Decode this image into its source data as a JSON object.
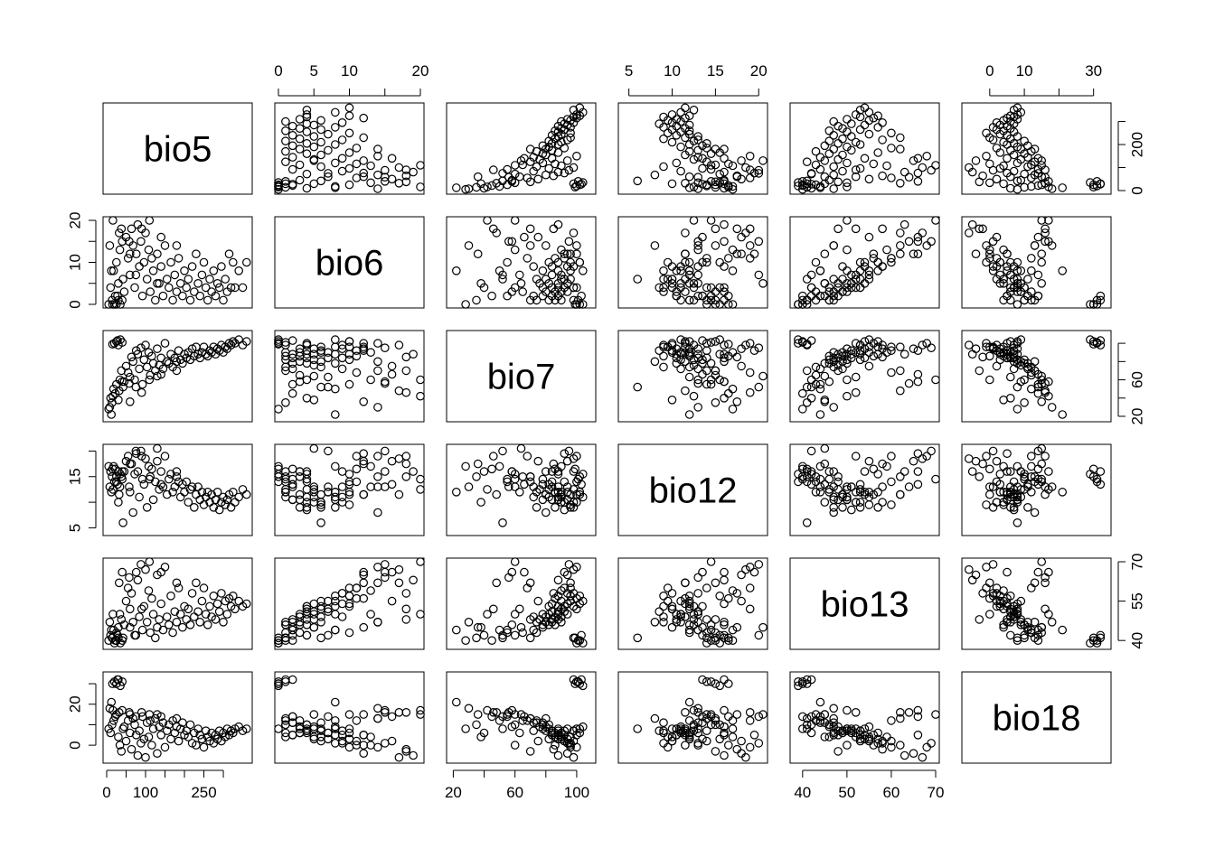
{
  "chart_data": {
    "type": "scatter",
    "subtype": "scatterplot-matrix",
    "variables": [
      "bio5",
      "bio6",
      "bio7",
      "bio12",
      "bio13",
      "bio18"
    ],
    "ranges": {
      "bio5": [
        0,
        365
      ],
      "bio6": [
        0,
        20
      ],
      "bio7": [
        18,
        110
      ],
      "bio12": [
        4.2,
        20.6
      ],
      "bio13": [
        38,
        70
      ],
      "bio18": [
        -7,
        34
      ]
    },
    "axes": {
      "bio5": {
        "ticks": [
          0,
          100,
          250
        ],
        "minor_ticks": [
          50,
          150,
          200,
          300
        ],
        "label_side": "bottom"
      },
      "bio6": {
        "ticks": [
          0,
          5,
          10,
          20
        ],
        "minor_ticks": [
          15
        ],
        "label_side": "top"
      },
      "bio7": {
        "ticks": [
          20,
          60,
          100
        ],
        "minor_ticks": [
          40,
          80
        ],
        "label_side": "bottom"
      },
      "bio12": {
        "ticks": [
          5,
          10,
          15,
          20
        ],
        "label_side": "top"
      },
      "bio13": {
        "ticks": [
          40,
          50,
          60,
          70
        ],
        "label_side": "bottom"
      },
      "bio18": {
        "ticks": [
          0,
          10,
          30
        ],
        "minor_ticks": [
          20
        ],
        "label_side": "top"
      }
    },
    "y_axes": {
      "bio5": {
        "ticks": [
          0,
          200
        ],
        "minor_ticks": [
          100,
          300
        ],
        "label_side": "right"
      },
      "bio6": {
        "ticks": [
          0,
          10,
          20
        ],
        "minor_ticks": [
          5,
          15
        ],
        "label_side": "left"
      },
      "bio7": {
        "ticks": [
          20,
          60
        ],
        "minor_ticks": [
          40,
          80,
          100
        ],
        "label_side": "right"
      },
      "bio12": {
        "ticks": [
          5,
          15
        ],
        "minor_ticks": [
          10,
          20
        ],
        "label_side": "left"
      },
      "bio13": {
        "ticks": [
          40,
          55,
          70
        ],
        "label_side": "right"
      },
      "bio18": {
        "ticks": [
          0,
          20
        ],
        "minor_ticks": [
          10,
          30
        ],
        "label_side": "left"
      }
    },
    "series": [
      {
        "values": [
          {
            "bio5": 5,
            "bio6": 0,
            "bio7": 28,
            "bio12": 17,
            "bio13": 40,
            "bio18": 8
          },
          {
            "bio5": 10,
            "bio6": 4,
            "bio7": 40,
            "bio12": 16,
            "bio13": 42,
            "bio18": 6
          },
          {
            "bio5": 14,
            "bio6": 1,
            "bio7": 35,
            "bio12": 15,
            "bio13": 41,
            "bio18": 10
          },
          {
            "bio5": 18,
            "bio6": 8,
            "bio7": 50,
            "bio12": 17,
            "bio13": 44,
            "bio18": 12
          },
          {
            "bio5": 22,
            "bio6": 2,
            "bio7": 45,
            "bio12": 16.5,
            "bio13": 40,
            "bio18": 14
          },
          {
            "bio5": 25,
            "bio6": 10,
            "bio7": 55,
            "bio12": 14,
            "bio13": 43,
            "bio18": 15
          },
          {
            "bio5": 30,
            "bio6": 5,
            "bio7": 38,
            "bio12": 10,
            "bio13": 45,
            "bio18": 4
          },
          {
            "bio5": 34,
            "bio6": 13,
            "bio7": 60,
            "bio12": 13,
            "bio13": 50,
            "bio18": 0
          },
          {
            "bio5": 38,
            "bio6": 18,
            "bio7": 70,
            "bio12": 15,
            "bio13": 48,
            "bio18": -3
          },
          {
            "bio5": 42,
            "bio6": 6,
            "bio7": 52,
            "bio12": 6,
            "bio13": 41,
            "bio18": 8
          },
          {
            "bio5": 45,
            "bio6": 3,
            "bio7": 58,
            "bio12": 16,
            "bio13": 46,
            "bio18": 9
          },
          {
            "bio5": 50,
            "bio6": 16,
            "bio7": 75,
            "bio12": 18,
            "bio13": 55,
            "bio18": 2
          },
          {
            "bio5": 55,
            "bio6": 11,
            "bio7": 68,
            "bio12": 19,
            "bio13": 60,
            "bio18": 12
          },
          {
            "bio5": 60,
            "bio6": 7,
            "bio7": 63,
            "bio12": 12,
            "bio13": 52,
            "bio18": 6
          },
          {
            "bio5": 64,
            "bio6": 18,
            "bio7": 85,
            "bio12": 17.5,
            "bio13": 58,
            "bio18": -2
          },
          {
            "bio5": 68,
            "bio6": 14,
            "bio7": 80,
            "bio12": 8,
            "bio13": 47,
            "bio18": 13
          },
          {
            "bio5": 72,
            "bio6": 4,
            "bio7": 60,
            "bio12": 15.5,
            "bio13": 42,
            "bio18": 10
          },
          {
            "bio5": 76,
            "bio6": 12,
            "bio7": 92,
            "bio12": 19.5,
            "bio13": 66,
            "bio18": 5
          },
          {
            "bio5": 80,
            "bio6": 19,
            "bio7": 88,
            "bio12": 16,
            "bio13": 63,
            "bio18": -5
          },
          {
            "bio5": 84,
            "bio6": 9,
            "bio7": 72,
            "bio12": 11,
            "bio13": 49,
            "bio18": 7
          },
          {
            "bio5": 88,
            "bio6": 15,
            "bio7": 95,
            "bio12": 20,
            "bio13": 69,
            "bio18": 1
          },
          {
            "bio5": 92,
            "bio6": 2,
            "bio7": 55,
            "bio12": 14.5,
            "bio13": 44,
            "bio18": 14
          },
          {
            "bio5": 96,
            "bio6": 10,
            "bio7": 82,
            "bio12": 13.5,
            "bio13": 53,
            "bio18": 3
          },
          {
            "bio5": 100,
            "bio6": 17,
            "bio7": 98,
            "bio12": 18.5,
            "bio13": 67,
            "bio18": -6
          },
          {
            "bio5": 104,
            "bio6": 6,
            "bio7": 74,
            "bio12": 9,
            "bio13": 47,
            "bio18": 11
          },
          {
            "bio5": 108,
            "bio6": 13,
            "bio7": 90,
            "bio12": 17,
            "bio13": 59,
            "bio18": 4
          },
          {
            "bio5": 112,
            "bio6": 3,
            "bio7": 65,
            "bio12": 15,
            "bio13": 43,
            "bio18": 12
          },
          {
            "bio5": 116,
            "bio6": 11,
            "bio7": 86,
            "bio12": 16.5,
            "bio13": 56,
            "bio18": 0
          },
          {
            "bio5": 120,
            "bio6": 8,
            "bio7": 78,
            "bio12": 10.5,
            "bio13": 50,
            "bio18": 8
          },
          {
            "bio5": 125,
            "bio6": 1,
            "bio7": 70,
            "bio12": 14,
            "bio13": 41,
            "bio18": 13
          },
          {
            "bio5": 130,
            "bio6": 12,
            "bio7": 94,
            "bio12": 18,
            "bio13": 65,
            "bio18": -4
          },
          {
            "bio5": 135,
            "bio6": 5,
            "bio7": 76,
            "bio12": 12.5,
            "bio13": 48,
            "bio18": 9
          },
          {
            "bio5": 140,
            "bio6": 9,
            "bio7": 84,
            "bio12": 16,
            "bio13": 54,
            "bio18": 5
          },
          {
            "bio5": 145,
            "bio6": 2,
            "bio7": 72,
            "bio12": 13,
            "bio13": 44,
            "bio18": 11
          },
          {
            "bio5": 150,
            "bio6": 14,
            "bio7": 100,
            "bio12": 19,
            "bio13": 68,
            "bio18": -1
          },
          {
            "bio5": 155,
            "bio6": 6,
            "bio7": 80,
            "bio12": 11.5,
            "bio13": 49,
            "bio18": 7
          },
          {
            "bio5": 160,
            "bio6": 4,
            "bio7": 78,
            "bio12": 14.5,
            "bio13": 46,
            "bio18": 10
          },
          {
            "bio5": 165,
            "bio6": 10,
            "bio7": 88,
            "bio12": 15.5,
            "bio13": 57,
            "bio18": 3
          },
          {
            "bio5": 170,
            "bio6": 1,
            "bio7": 74,
            "bio12": 12,
            "bio13": 43,
            "bio18": 12
          },
          {
            "bio5": 175,
            "bio6": 7,
            "bio7": 84,
            "bio12": 13,
            "bio13": 51,
            "bio18": 6
          },
          {
            "bio5": 180,
            "bio6": 3,
            "bio7": 80,
            "bio12": 16,
            "bio13": 47,
            "bio18": 9
          },
          {
            "bio5": 185,
            "bio6": 11,
            "bio7": 92,
            "bio12": 14,
            "bio13": 60,
            "bio18": 2
          },
          {
            "bio5": 190,
            "bio6": 5,
            "bio7": 82,
            "bio12": 11,
            "bio13": 50,
            "bio18": 8
          },
          {
            "bio5": 195,
            "bio6": 2,
            "bio7": 78,
            "bio12": 13.5,
            "bio13": 45,
            "bio18": 11
          },
          {
            "bio5": 200,
            "bio6": 8,
            "bio7": 88,
            "bio12": 12,
            "bio13": 53,
            "bio18": 5
          },
          {
            "bio5": 205,
            "bio6": 4,
            "bio7": 84,
            "bio12": 14,
            "bio13": 48,
            "bio18": 7
          },
          {
            "bio5": 210,
            "bio6": 6,
            "bio7": 90,
            "bio12": 10,
            "bio13": 52,
            "bio18": 4
          },
          {
            "bio5": 215,
            "bio6": 1,
            "bio7": 82,
            "bio12": 12.5,
            "bio13": 46,
            "bio18": 10
          },
          {
            "bio5": 220,
            "bio6": 9,
            "bio7": 94,
            "bio12": 13,
            "bio13": 58,
            "bio18": 1
          },
          {
            "bio5": 225,
            "bio6": 3,
            "bio7": 86,
            "bio12": 9,
            "bio13": 49,
            "bio18": 6
          },
          {
            "bio5": 230,
            "bio6": 12,
            "bio7": 96,
            "bio12": 11.5,
            "bio13": 62,
            "bio18": 0
          },
          {
            "bio5": 235,
            "bio6": 5,
            "bio7": 88,
            "bio12": 13,
            "bio13": 51,
            "bio18": 8
          },
          {
            "bio5": 240,
            "bio6": 2,
            "bio7": 84,
            "bio12": 10.5,
            "bio13": 47,
            "bio18": 5
          },
          {
            "bio5": 245,
            "bio6": 7,
            "bio7": 90,
            "bio12": 12,
            "bio13": 55,
            "bio18": 3
          },
          {
            "bio5": 250,
            "bio6": 10,
            "bio7": 96,
            "bio12": 9.5,
            "bio13": 60,
            "bio18": -1
          },
          {
            "bio5": 255,
            "bio6": 4,
            "bio7": 88,
            "bio12": 11,
            "bio13": 50,
            "bio18": 7
          },
          {
            "bio5": 260,
            "bio6": 1,
            "bio7": 86,
            "bio12": 12,
            "bio13": 46,
            "bio18": 4
          },
          {
            "bio5": 265,
            "bio6": 6,
            "bio7": 92,
            "bio12": 10,
            "bio13": 53,
            "bio18": 2
          },
          {
            "bio5": 270,
            "bio6": 3,
            "bio7": 90,
            "bio12": 11.5,
            "bio13": 49,
            "bio18": 6
          },
          {
            "bio5": 275,
            "bio6": 8,
            "bio7": 96,
            "bio12": 9,
            "bio13": 57,
            "bio18": 1
          },
          {
            "bio5": 280,
            "bio6": 2,
            "bio7": 88,
            "bio12": 10.5,
            "bio13": 48,
            "bio18": 5
          },
          {
            "bio5": 285,
            "bio6": 5,
            "bio7": 94,
            "bio12": 12,
            "bio13": 54,
            "bio18": 3
          },
          {
            "bio5": 290,
            "bio6": 4,
            "bio7": 92,
            "bio12": 8.5,
            "bio13": 51,
            "bio18": 7
          },
          {
            "bio5": 295,
            "bio6": 9,
            "bio7": 98,
            "bio12": 10,
            "bio13": 58,
            "bio18": 2
          },
          {
            "bio5": 300,
            "bio6": 1,
            "bio7": 90,
            "bio12": 11,
            "bio13": 47,
            "bio18": 6
          },
          {
            "bio5": 305,
            "bio6": 6,
            "bio7": 96,
            "bio12": 9.5,
            "bio13": 55,
            "bio18": 4
          },
          {
            "bio5": 310,
            "bio6": 3,
            "bio7": 94,
            "bio12": 10.5,
            "bio13": 50,
            "bio18": 8
          },
          {
            "bio5": 315,
            "bio6": 12,
            "bio7": 100,
            "bio12": 11.5,
            "bio13": 56,
            "bio18": 5
          },
          {
            "bio5": 320,
            "bio6": 4,
            "bio7": 98,
            "bio12": 9,
            "bio13": 53,
            "bio18": 7
          },
          {
            "bio5": 325,
            "bio6": 10,
            "bio7": 102,
            "bio12": 12,
            "bio13": 57,
            "bio18": 6
          },
          {
            "bio5": 330,
            "bio6": 4,
            "bio7": 100,
            "bio12": 10,
            "bio13": 52,
            "bio18": 8
          },
          {
            "bio5": 340,
            "bio6": 8,
            "bio7": 104,
            "bio12": 11,
            "bio13": 55,
            "bio18": 9
          },
          {
            "bio5": 350,
            "bio6": 4,
            "bio7": 98,
            "bio12": 12.5,
            "bio13": 53,
            "bio18": 7
          },
          {
            "bio5": 360,
            "bio6": 10,
            "bio7": 102,
            "bio12": 11.5,
            "bio13": 54,
            "bio18": 8
          },
          {
            "bio5": 20,
            "bio6": 0,
            "bio7": 100,
            "bio12": 14,
            "bio13": 39,
            "bio18": 31
          },
          {
            "bio5": 25,
            "bio6": 0,
            "bio7": 102,
            "bio12": 15,
            "bio13": 40,
            "bio18": 30
          },
          {
            "bio5": 30,
            "bio6": 1,
            "bio7": 98,
            "bio12": 16,
            "bio13": 41,
            "bio18": 32
          },
          {
            "bio5": 35,
            "bio6": 0,
            "bio7": 104,
            "bio12": 15.5,
            "bio13": 39,
            "bio18": 29
          },
          {
            "bio5": 40,
            "bio6": 1,
            "bio7": 101,
            "bio12": 14.5,
            "bio13": 40,
            "bio18": 31
          },
          {
            "bio5": 15,
            "bio6": 0,
            "bio7": 99,
            "bio12": 16.5,
            "bio13": 41,
            "bio18": 30
          },
          {
            "bio5": 28,
            "bio6": 2,
            "bio7": 103,
            "bio12": 13.5,
            "bio13": 42,
            "bio18": 32
          },
          {
            "bio5": 12,
            "bio6": 8,
            "bio7": 22,
            "bio12": 12,
            "bio13": 44,
            "bio18": 21
          },
          {
            "bio5": 8,
            "bio6": 14,
            "bio7": 30,
            "bio12": 13,
            "bio13": 47,
            "bio18": 18
          },
          {
            "bio5": 16,
            "bio6": 20,
            "bio7": 42,
            "bio12": 12.5,
            "bio13": 50,
            "bio18": 17
          },
          {
            "bio5": 32,
            "bio6": 17,
            "bio7": 48,
            "bio12": 11.5,
            "bio13": 62,
            "bio18": 16
          },
          {
            "bio5": 58,
            "bio6": 15,
            "bio7": 56,
            "bio12": 13,
            "bio13": 64,
            "bio18": 16
          },
          {
            "bio5": 110,
            "bio6": 20,
            "bio7": 60,
            "bio12": 14.5,
            "bio13": 70,
            "bio18": 15
          },
          {
            "bio5": 140,
            "bio6": 16,
            "bio7": 66,
            "bio12": 13.5,
            "bio13": 66,
            "bio18": 14
          },
          {
            "bio5": 180,
            "bio6": 14,
            "bio7": 70,
            "bio12": 15,
            "bio13": 62,
            "bio18": 13
          },
          {
            "bio5": 60,
            "bio6": 12,
            "bio7": 36,
            "bio12": 17.5,
            "bio13": 45,
            "bio18": 15
          },
          {
            "bio5": 90,
            "bio6": 18,
            "bio7": 46,
            "bio12": 19,
            "bio13": 52,
            "bio18": 16
          },
          {
            "bio5": 40,
            "bio6": 15,
            "bio7": 58,
            "bio12": 16,
            "bio13": 66,
            "bio18": 17
          },
          {
            "bio5": 75,
            "bio6": 7,
            "bio7": 52,
            "bio12": 20,
            "bio13": 42,
            "bio18": 14
          },
          {
            "bio5": 130,
            "bio6": 5,
            "bio7": 64,
            "bio12": 20.5,
            "bio13": 45,
            "bio18": 15
          }
        ]
      }
    ]
  }
}
